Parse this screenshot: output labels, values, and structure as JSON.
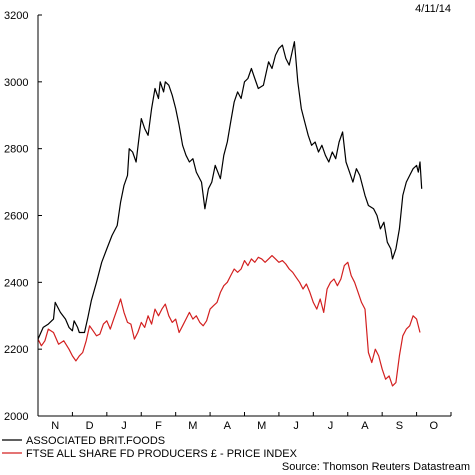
{
  "date_label": "4/11/14",
  "source": "Source: Thomson Reuters Datastream",
  "chart_data": {
    "type": "line",
    "ylim": [
      2000,
      3200
    ],
    "y_ticks": [
      2000,
      2200,
      2400,
      2600,
      2800,
      3000,
      3200
    ],
    "months": [
      "N",
      "D",
      "J",
      "F",
      "M",
      "A",
      "M",
      "J",
      "J",
      "A",
      "S",
      "O"
    ],
    "x_start": 0,
    "x_end": 12,
    "series": [
      {
        "name": "ASSOCIATED BRIT.FOODS",
        "color": "#000000",
        "points": [
          [
            0.0,
            2230
          ],
          [
            0.15,
            2265
          ],
          [
            0.3,
            2275
          ],
          [
            0.45,
            2290
          ],
          [
            0.5,
            2340
          ],
          [
            0.65,
            2310
          ],
          [
            0.8,
            2290
          ],
          [
            0.9,
            2265
          ],
          [
            1.0,
            2255
          ],
          [
            1.05,
            2285
          ],
          [
            1.15,
            2265
          ],
          [
            1.2,
            2250
          ],
          [
            1.35,
            2250
          ],
          [
            1.45,
            2295
          ],
          [
            1.55,
            2345
          ],
          [
            1.7,
            2400
          ],
          [
            1.85,
            2460
          ],
          [
            2.0,
            2500
          ],
          [
            2.15,
            2540
          ],
          [
            2.3,
            2570
          ],
          [
            2.4,
            2640
          ],
          [
            2.5,
            2690
          ],
          [
            2.6,
            2720
          ],
          [
            2.65,
            2800
          ],
          [
            2.75,
            2790
          ],
          [
            2.85,
            2760
          ],
          [
            3.0,
            2890
          ],
          [
            3.1,
            2860
          ],
          [
            3.2,
            2840
          ],
          [
            3.3,
            2920
          ],
          [
            3.4,
            2980
          ],
          [
            3.5,
            2950
          ],
          [
            3.55,
            3000
          ],
          [
            3.65,
            2970
          ],
          [
            3.7,
            3000
          ],
          [
            3.8,
            2990
          ],
          [
            3.9,
            2960
          ],
          [
            4.0,
            2920
          ],
          [
            4.1,
            2870
          ],
          [
            4.2,
            2810
          ],
          [
            4.3,
            2780
          ],
          [
            4.4,
            2760
          ],
          [
            4.5,
            2770
          ],
          [
            4.6,
            2730
          ],
          [
            4.75,
            2700
          ],
          [
            4.85,
            2620
          ],
          [
            4.95,
            2680
          ],
          [
            5.05,
            2700
          ],
          [
            5.15,
            2750
          ],
          [
            5.3,
            2710
          ],
          [
            5.4,
            2780
          ],
          [
            5.5,
            2820
          ],
          [
            5.6,
            2880
          ],
          [
            5.7,
            2940
          ],
          [
            5.8,
            2970
          ],
          [
            5.9,
            2950
          ],
          [
            6.0,
            3000
          ],
          [
            6.1,
            3010
          ],
          [
            6.2,
            3040
          ],
          [
            6.3,
            3010
          ],
          [
            6.4,
            2980
          ],
          [
            6.55,
            2990
          ],
          [
            6.7,
            3060
          ],
          [
            6.8,
            3040
          ],
          [
            6.9,
            3080
          ],
          [
            7.0,
            3100
          ],
          [
            7.1,
            3110
          ],
          [
            7.2,
            3070
          ],
          [
            7.3,
            3050
          ],
          [
            7.45,
            3120
          ],
          [
            7.55,
            3000
          ],
          [
            7.65,
            2920
          ],
          [
            7.75,
            2880
          ],
          [
            7.85,
            2840
          ],
          [
            7.95,
            2810
          ],
          [
            8.05,
            2820
          ],
          [
            8.15,
            2790
          ],
          [
            8.25,
            2810
          ],
          [
            8.35,
            2780
          ],
          [
            8.45,
            2760
          ],
          [
            8.55,
            2790
          ],
          [
            8.65,
            2770
          ],
          [
            8.75,
            2820
          ],
          [
            8.85,
            2850
          ],
          [
            8.95,
            2760
          ],
          [
            9.05,
            2730
          ],
          [
            9.15,
            2700
          ],
          [
            9.25,
            2740
          ],
          [
            9.35,
            2720
          ],
          [
            9.5,
            2660
          ],
          [
            9.6,
            2630
          ],
          [
            9.75,
            2620
          ],
          [
            9.85,
            2600
          ],
          [
            9.95,
            2560
          ],
          [
            10.05,
            2580
          ],
          [
            10.15,
            2520
          ],
          [
            10.25,
            2500
          ],
          [
            10.3,
            2470
          ],
          [
            10.4,
            2500
          ],
          [
            10.5,
            2560
          ],
          [
            10.6,
            2660
          ],
          [
            10.7,
            2700
          ],
          [
            10.8,
            2720
          ],
          [
            10.9,
            2740
          ],
          [
            11.0,
            2750
          ],
          [
            11.05,
            2730
          ],
          [
            11.1,
            2760
          ],
          [
            11.15,
            2680
          ]
        ]
      },
      {
        "name": "FTSE ALL SHARE FD PRODUCERS £ - PRICE INDEX",
        "color": "#d32020",
        "points": [
          [
            0.0,
            2230
          ],
          [
            0.1,
            2210
          ],
          [
            0.2,
            2225
          ],
          [
            0.3,
            2260
          ],
          [
            0.45,
            2250
          ],
          [
            0.6,
            2215
          ],
          [
            0.75,
            2225
          ],
          [
            0.9,
            2200
          ],
          [
            1.0,
            2180
          ],
          [
            1.1,
            2165
          ],
          [
            1.2,
            2180
          ],
          [
            1.3,
            2190
          ],
          [
            1.4,
            2225
          ],
          [
            1.5,
            2270
          ],
          [
            1.6,
            2255
          ],
          [
            1.7,
            2240
          ],
          [
            1.8,
            2245
          ],
          [
            1.9,
            2275
          ],
          [
            2.0,
            2285
          ],
          [
            2.1,
            2260
          ],
          [
            2.2,
            2290
          ],
          [
            2.3,
            2320
          ],
          [
            2.4,
            2350
          ],
          [
            2.5,
            2310
          ],
          [
            2.6,
            2280
          ],
          [
            2.7,
            2275
          ],
          [
            2.8,
            2230
          ],
          [
            2.9,
            2250
          ],
          [
            3.0,
            2280
          ],
          [
            3.1,
            2265
          ],
          [
            3.2,
            2300
          ],
          [
            3.3,
            2275
          ],
          [
            3.4,
            2320
          ],
          [
            3.5,
            2300
          ],
          [
            3.6,
            2320
          ],
          [
            3.7,
            2335
          ],
          [
            3.8,
            2300
          ],
          [
            3.9,
            2280
          ],
          [
            4.0,
            2290
          ],
          [
            4.1,
            2250
          ],
          [
            4.2,
            2270
          ],
          [
            4.3,
            2290
          ],
          [
            4.4,
            2310
          ],
          [
            4.5,
            2290
          ],
          [
            4.6,
            2300
          ],
          [
            4.7,
            2280
          ],
          [
            4.8,
            2270
          ],
          [
            4.9,
            2285
          ],
          [
            5.0,
            2320
          ],
          [
            5.1,
            2330
          ],
          [
            5.2,
            2340
          ],
          [
            5.3,
            2370
          ],
          [
            5.4,
            2390
          ],
          [
            5.5,
            2400
          ],
          [
            5.6,
            2420
          ],
          [
            5.7,
            2440
          ],
          [
            5.8,
            2430
          ],
          [
            5.9,
            2440
          ],
          [
            6.0,
            2465
          ],
          [
            6.1,
            2450
          ],
          [
            6.2,
            2470
          ],
          [
            6.3,
            2460
          ],
          [
            6.4,
            2475
          ],
          [
            6.5,
            2470
          ],
          [
            6.6,
            2460
          ],
          [
            6.7,
            2470
          ],
          [
            6.8,
            2480
          ],
          [
            6.9,
            2470
          ],
          [
            7.0,
            2460
          ],
          [
            7.1,
            2465
          ],
          [
            7.2,
            2455
          ],
          [
            7.3,
            2440
          ],
          [
            7.4,
            2430
          ],
          [
            7.5,
            2415
          ],
          [
            7.6,
            2400
          ],
          [
            7.7,
            2380
          ],
          [
            7.8,
            2395
          ],
          [
            7.9,
            2370
          ],
          [
            8.0,
            2340
          ],
          [
            8.1,
            2320
          ],
          [
            8.2,
            2350
          ],
          [
            8.3,
            2310
          ],
          [
            8.4,
            2380
          ],
          [
            8.5,
            2400
          ],
          [
            8.6,
            2410
          ],
          [
            8.7,
            2390
          ],
          [
            8.8,
            2410
          ],
          [
            8.9,
            2450
          ],
          [
            9.0,
            2460
          ],
          [
            9.1,
            2420
          ],
          [
            9.2,
            2400
          ],
          [
            9.3,
            2370
          ],
          [
            9.4,
            2340
          ],
          [
            9.5,
            2320
          ],
          [
            9.6,
            2190
          ],
          [
            9.7,
            2160
          ],
          [
            9.8,
            2200
          ],
          [
            9.9,
            2180
          ],
          [
            10.0,
            2140
          ],
          [
            10.1,
            2110
          ],
          [
            10.2,
            2120
          ],
          [
            10.3,
            2090
          ],
          [
            10.4,
            2100
          ],
          [
            10.5,
            2180
          ],
          [
            10.6,
            2240
          ],
          [
            10.7,
            2260
          ],
          [
            10.8,
            2270
          ],
          [
            10.9,
            2300
          ],
          [
            11.0,
            2290
          ],
          [
            11.1,
            2250
          ]
        ]
      }
    ]
  }
}
